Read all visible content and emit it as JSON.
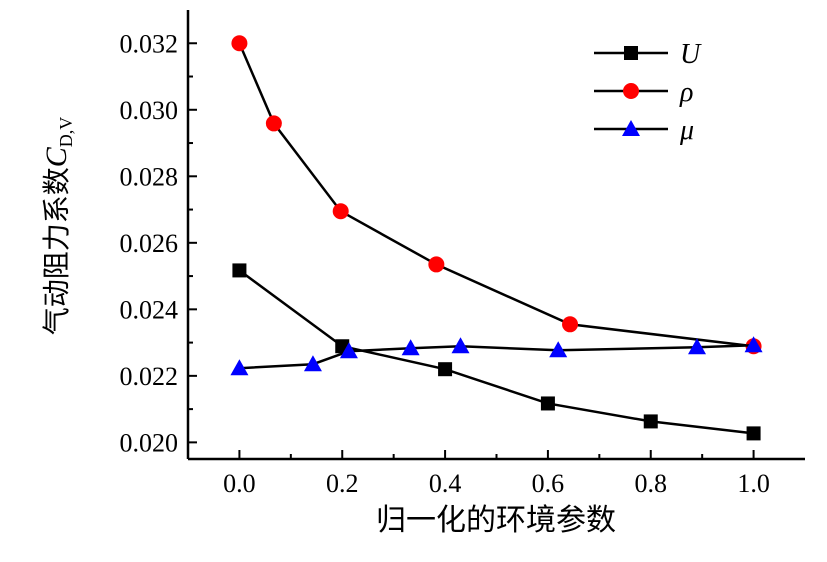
{
  "chart_data": {
    "type": "line",
    "title": "",
    "xlabel": "归一化的环境参数",
    "ylabel_prefix": "气动阻力系数",
    "ylabel_symbol": "C",
    "ylabel_subscript": "D,V",
    "xlim": [
      -0.1,
      1.1
    ],
    "ylim": [
      0.0195,
      0.033
    ],
    "xticks": [
      0.0,
      0.2,
      0.4,
      0.6,
      0.8,
      1.0
    ],
    "xtick_labels": [
      "0.0",
      "0.2",
      "0.4",
      "0.6",
      "0.8",
      "1.0"
    ],
    "yticks": [
      0.02,
      0.022,
      0.024,
      0.026,
      0.028,
      0.03,
      0.032
    ],
    "ytick_labels": [
      "0.020",
      "0.022",
      "0.024",
      "0.026",
      "0.028",
      "0.030",
      "0.032"
    ],
    "grid": false,
    "legend_position": "top-right",
    "series": [
      {
        "name": "U",
        "marker": "square",
        "color": "#000000",
        "x": [
          0,
          0.2,
          0.4,
          0.6,
          0.8,
          1.0
        ],
        "y": [
          0.02517,
          0.02289,
          0.0222,
          0.02117,
          0.02063,
          0.02027
        ]
      },
      {
        "name": "ρ",
        "marker": "circle",
        "color": "#ff0000",
        "x": [
          0,
          0.067,
          0.197,
          0.383,
          0.643,
          1.0
        ],
        "y": [
          0.032,
          0.02959,
          0.02695,
          0.02535,
          0.02355,
          0.02289
        ]
      },
      {
        "name": "μ",
        "marker": "triangle",
        "color": "#0000ff",
        "x": [
          0,
          0.143,
          0.213,
          0.333,
          0.43,
          0.62,
          0.89,
          1.0
        ],
        "y": [
          0.02223,
          0.02235,
          0.02274,
          0.02283,
          0.02289,
          0.02277,
          0.02286,
          0.02292
        ]
      }
    ]
  }
}
